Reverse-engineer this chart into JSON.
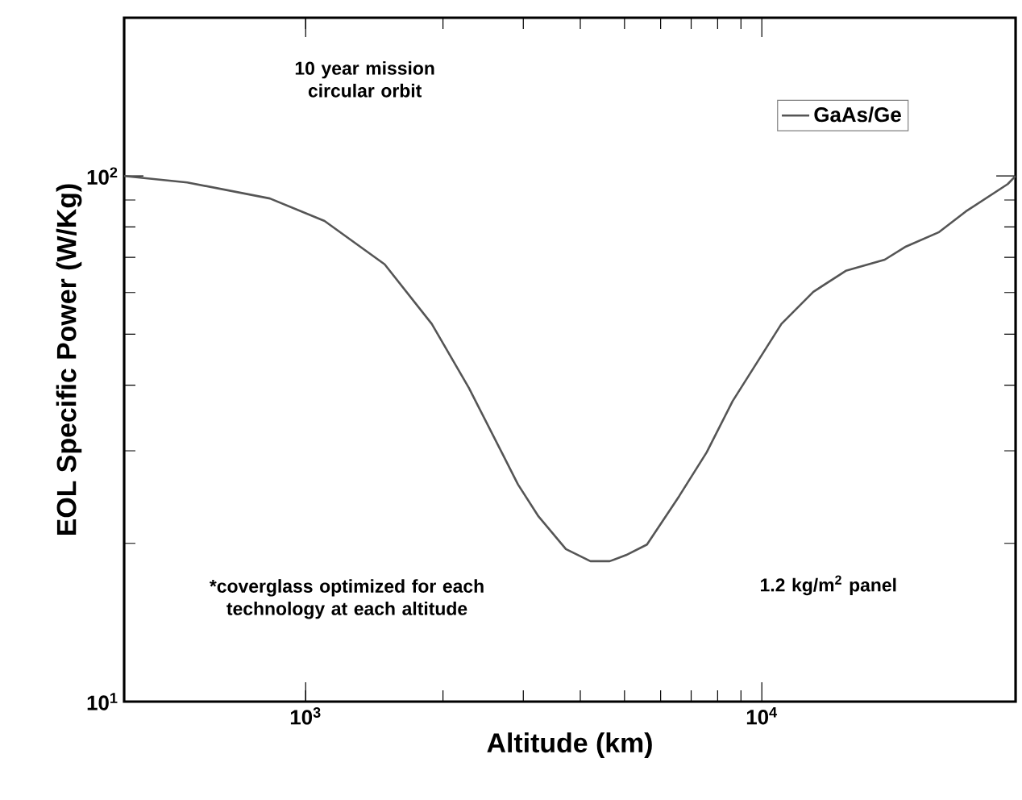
{
  "chart_data": {
    "type": "line",
    "xlabel": "Altitude (km)",
    "ylabel": "EOL Specific Power (W/Kg)",
    "log": "xy",
    "xlim": [
      400,
      36000
    ],
    "ylim": [
      10,
      200
    ],
    "xticks": [
      {
        "value": 1000,
        "label": "10$^{3}$"
      },
      {
        "value": 10000,
        "label": "10$^{4}$"
      }
    ],
    "yticks": [
      {
        "value": 10,
        "label": "10$^{1}$"
      },
      {
        "value": 100,
        "label": "10$^{2}$"
      }
    ],
    "legend": "top right",
    "grid": false,
    "annotations": [
      "10 year mission circular orbit",
      "*coverglass optimized for each technology at each altitude",
      "1.2 kg/m$^{2}$ panel"
    ],
    "series": [
      {
        "name": "GaAs/Ge",
        "color": "#555555",
        "x": [
          400,
          550,
          835,
          1100,
          1490,
          1890,
          2280,
          2690,
          2920,
          3240,
          3720,
          4210,
          4640,
          5040,
          5600,
          6590,
          7570,
          8630,
          11040,
          12970,
          15280,
          18600,
          20700,
          24400,
          28000,
          34600,
          36000
        ],
        "values": [
          100,
          97.2,
          90.6,
          82.1,
          67.9,
          52.3,
          39.5,
          29.8,
          25.9,
          22.5,
          19.5,
          18.5,
          18.5,
          19.0,
          19.9,
          24.6,
          29.8,
          37.3,
          52.3,
          60.2,
          66.0,
          69.3,
          73.4,
          78.1,
          85.6,
          96.5,
          100
        ]
      }
    ]
  }
}
